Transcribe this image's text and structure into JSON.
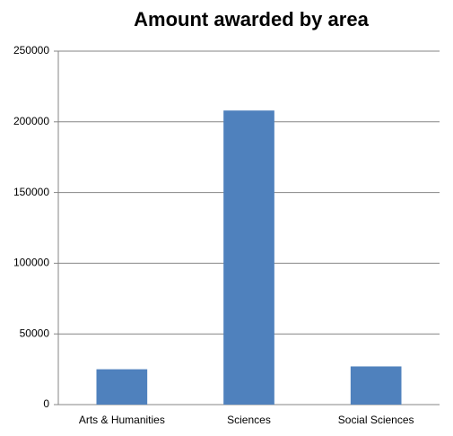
{
  "chart_data": {
    "type": "bar",
    "title": "Amount awarded by area",
    "categories": [
      "Arts & Humanities",
      "Sciences",
      "Social Sciences"
    ],
    "values": [
      25000,
      208000,
      27000
    ],
    "color": "#4f81bd",
    "ylim": [
      0,
      250000
    ],
    "yticks": [
      0,
      50000,
      100000,
      150000,
      200000,
      250000
    ],
    "grid": true
  }
}
